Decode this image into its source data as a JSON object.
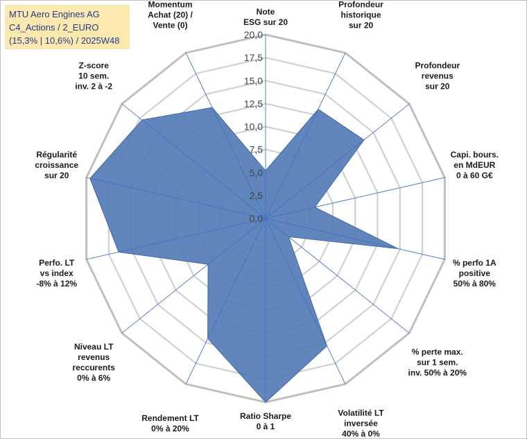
{
  "chart_data": {
    "type": "radar",
    "title_lines": [
      "MTU Aero Engines AG",
      "C4_Actions / 2_EURO",
      "(15,3% | 10,6%) / 2025W48"
    ],
    "rmax": 20,
    "ticks": [
      "0,0",
      "2,5",
      "5,0",
      "7,5",
      "10,0",
      "12,5",
      "15,0",
      "17,5",
      "20,0"
    ],
    "axes": [
      {
        "label": [
          "Note",
          "ESG sur 20"
        ],
        "value": 5.2
      },
      {
        "label": [
          "Profondeur",
          "historique",
          "sur 20"
        ],
        "value": 13.2
      },
      {
        "label": [
          "Profondeur",
          "revenus",
          "sur 20"
        ],
        "value": 13.7
      },
      {
        "label": [
          "Capi. bours.",
          "en MdEUR",
          "0 à 60 G€"
        ],
        "value": 5.5
      },
      {
        "label": [
          "% perfo 1A",
          "positive",
          "50% à 80%"
        ],
        "value": 14.8
      },
      {
        "label": [
          "% perte max.",
          "sur 1 sem.",
          "inv. 50% à 20%"
        ],
        "value": 3.2
      },
      {
        "label": [
          "Volatilité LT",
          "inversée",
          "40% à 0%"
        ],
        "value": 15.4
      },
      {
        "label": [
          "Ratio Sharpe",
          "0 à 1"
        ],
        "value": 20.0
      },
      {
        "label": [
          "Rendement LT",
          "0% à 20%"
        ],
        "value": 14.5
      },
      {
        "label": [
          "Niveau LT",
          "revenus",
          "reccurents",
          "0% à 6%"
        ],
        "value": 8.0
      },
      {
        "label": [
          "Perfo. LT",
          "vs index",
          "-8% à 12%"
        ],
        "value": 16.4
      },
      {
        "label": [
          "Régularité",
          "croissance",
          "sur 20"
        ],
        "value": 19.6
      },
      {
        "label": [
          "Z-score",
          "10 sem.",
          "inv. 2 à -2"
        ],
        "value": 17.2
      },
      {
        "label": [
          "Momentum",
          "Achat (20) /",
          "Vente (0)"
        ],
        "value": 13.4
      }
    ],
    "colors": {
      "fill": "#4f79b5",
      "stroke": "#3f67a3",
      "spoke": "#4472c4",
      "grid": "#d0d0d0",
      "grid_outer": "#bfbfbf"
    }
  }
}
